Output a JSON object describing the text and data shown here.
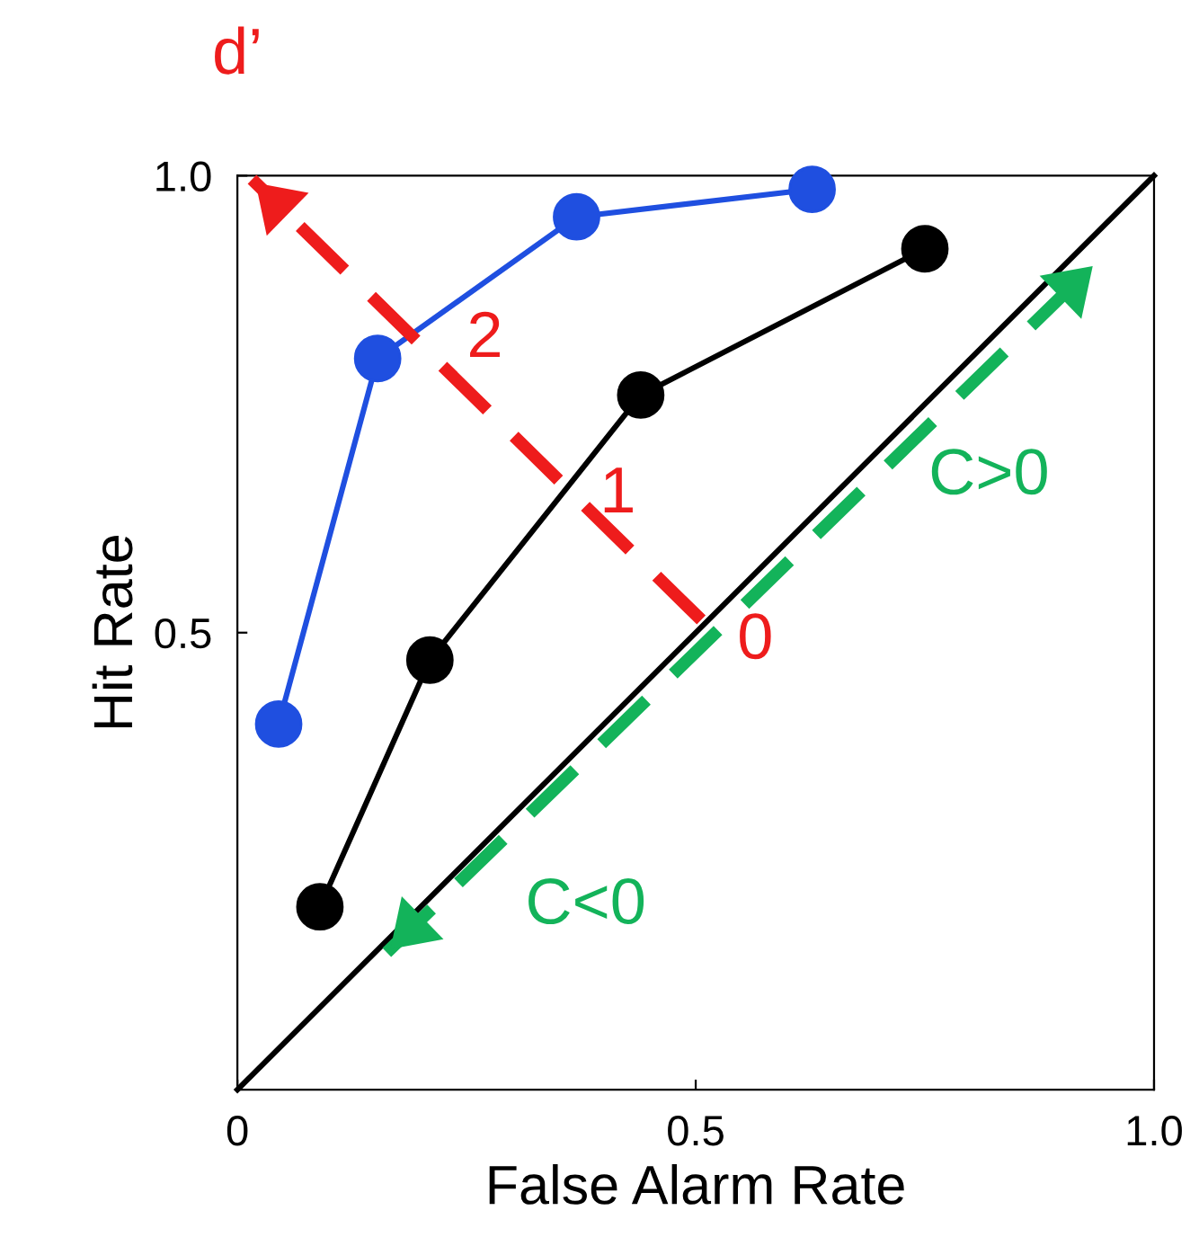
{
  "chart_data": {
    "type": "line",
    "xlabel": "False Alarm Rate",
    "ylabel": "Hit Rate",
    "xlim": [
      0,
      1
    ],
    "ylim": [
      0,
      1
    ],
    "xticks": [
      0,
      {
        "value": 0.5,
        "label": "0.5"
      },
      {
        "value": 1,
        "label": "1.0"
      }
    ],
    "yticks": [
      {
        "value": 0.5,
        "label": "0.5"
      },
      {
        "value": 1,
        "label": "1.0"
      }
    ],
    "grid": false,
    "legend": false,
    "series": [
      {
        "color": "#000000",
        "x": [
          0,
          1
        ],
        "values": [
          0,
          1
        ],
        "marker": "none",
        "line_style": "solid"
      },
      {
        "color": "#1f4fe0",
        "x": [
          0.045,
          0.153,
          0.37,
          0.627
        ],
        "values": [
          0.4,
          0.8,
          0.955,
          0.985
        ],
        "marker": "circle",
        "line_style": "solid"
      },
      {
        "color": "#000000",
        "x": [
          0.09,
          0.21,
          0.44,
          0.75
        ],
        "values": [
          0.2,
          0.47,
          0.76,
          0.92
        ],
        "marker": "circle",
        "line_style": "solid"
      },
      {
        "color": "#ee1c1c",
        "x": [
          0.506,
          0.016
        ],
        "values": [
          0.514,
          0.996
        ],
        "marker": "none",
        "line_style": "dashed"
      },
      {
        "color": "#13b35a",
        "x": [
          0.163,
          0.937
        ],
        "values": [
          0.15,
          0.905
        ],
        "marker": "none",
        "line_style": "dashed"
      }
    ],
    "annotations": [
      "d’",
      "2",
      "1",
      "0",
      "C>0",
      "C<0"
    ]
  }
}
